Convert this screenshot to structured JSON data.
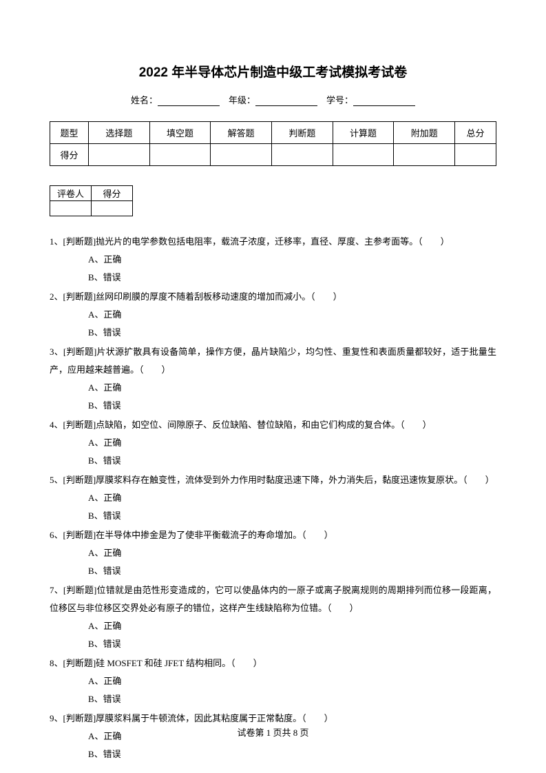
{
  "title": "2022 年半导体芯片制造中级工考试模拟考试卷",
  "info": {
    "name_label": "姓名：",
    "grade_label": "年级：",
    "id_label": "学号："
  },
  "score_table": {
    "headers": [
      "题型",
      "选择题",
      "填空题",
      "解答题",
      "判断题",
      "计算题",
      "附加题",
      "总分"
    ],
    "row2_label": "得分"
  },
  "mini_table": {
    "col1": "评卷人",
    "col2": "得分"
  },
  "questions": [
    {
      "num": "1、",
      "text": "[判断题]抛光片的电学参数包括电阻率，载流子浓度，迁移率，直径、厚度、主参考面等。（　　）",
      "a": "A、正确",
      "b": "B、错误"
    },
    {
      "num": "2、",
      "text": "[判断题]丝网印刷膜的厚度不随着刮板移动速度的增加而减小。（　　）",
      "a": "A、正确",
      "b": "B、错误"
    },
    {
      "num": "3、",
      "text": "[判断题]片状源扩散具有设备简单，操作方便，晶片缺陷少，均匀性、重复性和表面质量都较好，适于批量生产，应用越来越普遍。（　　）",
      "a": "A、正确",
      "b": "B、错误"
    },
    {
      "num": "4、",
      "text": "[判断题]点缺陷，如空位、间隙原子、反位缺陷、替位缺陷，和由它们构成的复合体。（　　）",
      "a": "A、正确",
      "b": "B、错误"
    },
    {
      "num": "5、",
      "text": "[判断题]厚膜浆料存在触变性，流体受到外力作用时黏度迅速下降，外力消失后，黏度迅速恢复原状。（　　）",
      "a": "A、正确",
      "b": "B、错误"
    },
    {
      "num": "6、",
      "text": "[判断题]在半导体中掺金是为了使非平衡载流子的寿命增加。（　　）",
      "a": "A、正确",
      "b": "B、错误"
    },
    {
      "num": "7、",
      "text": "[判断题]位错就是由范性形变造成的，它可以使晶体内的一原子或离子脱离规则的周期排列而位移一段距离，位移区与非位移区交界处必有原子的错位，这样产生线缺陷称为位错。（　　）",
      "a": "A、正确",
      "b": "B、错误"
    },
    {
      "num": "8、",
      "text": "[判断题]硅 MOSFET 和硅 JFET 结构相同。（　　）",
      "a": "A、正确",
      "b": "B、错误"
    },
    {
      "num": "9、",
      "text": "[判断题]厚膜浆料属于牛顿流体，因此其粘度属于正常黏度。（　　）",
      "a": "A、正确",
      "b": "B、错误"
    }
  ],
  "footer": {
    "prefix": "试卷第 ",
    "page": "1",
    "mid": " 页共 ",
    "total": "8",
    "suffix": " 页"
  }
}
